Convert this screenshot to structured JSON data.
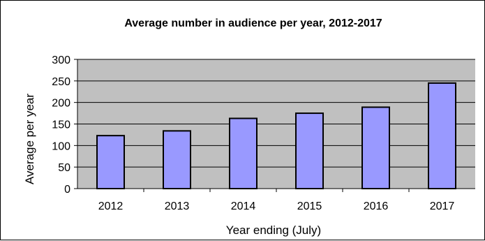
{
  "chart_data": {
    "type": "bar",
    "title": "Average number in audience per year, 2012-2017",
    "xlabel": "Year ending (July)",
    "ylabel": "Average per year",
    "categories": [
      "2012",
      "2013",
      "2014",
      "2015",
      "2016",
      "2017"
    ],
    "values": [
      123,
      134,
      163,
      175,
      189,
      245
    ],
    "ylim": [
      0,
      300
    ],
    "yticks": [
      0,
      50,
      100,
      150,
      200,
      250,
      300
    ],
    "grid": true,
    "legend": "none",
    "colors": {
      "bar_fill": "#9999FF",
      "bar_stroke": "#000000",
      "plot_background": "#C0C0C0",
      "gridline": "#000000"
    }
  }
}
